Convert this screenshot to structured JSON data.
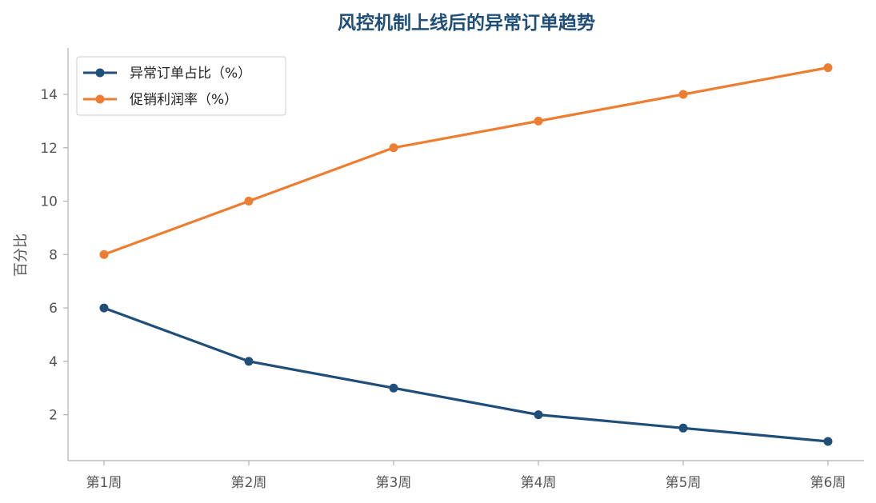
{
  "chart_data": {
    "type": "line",
    "title": "风控机制上线后的异常订单趋势",
    "xlabel": "",
    "ylabel": "百分比",
    "categories": [
      "第1周",
      "第2周",
      "第3周",
      "第4周",
      "第5周",
      "第6周"
    ],
    "ylim": [
      0.3,
      15.7
    ],
    "yticks": [
      2,
      4,
      6,
      8,
      10,
      12,
      14
    ],
    "grid": false,
    "legend_position": "top-left",
    "series": [
      {
        "name": "异常订单占比（%）",
        "color": "#1f4e79",
        "values": [
          6,
          4,
          3,
          2,
          1.5,
          1
        ]
      },
      {
        "name": "促销利润率（%）",
        "color": "#ed7d31",
        "values": [
          8,
          10,
          12,
          13,
          14,
          15
        ]
      }
    ]
  },
  "colors": {
    "title": "#1f4e79",
    "axis": "#b0b0b0",
    "tick_text": "#555555"
  }
}
